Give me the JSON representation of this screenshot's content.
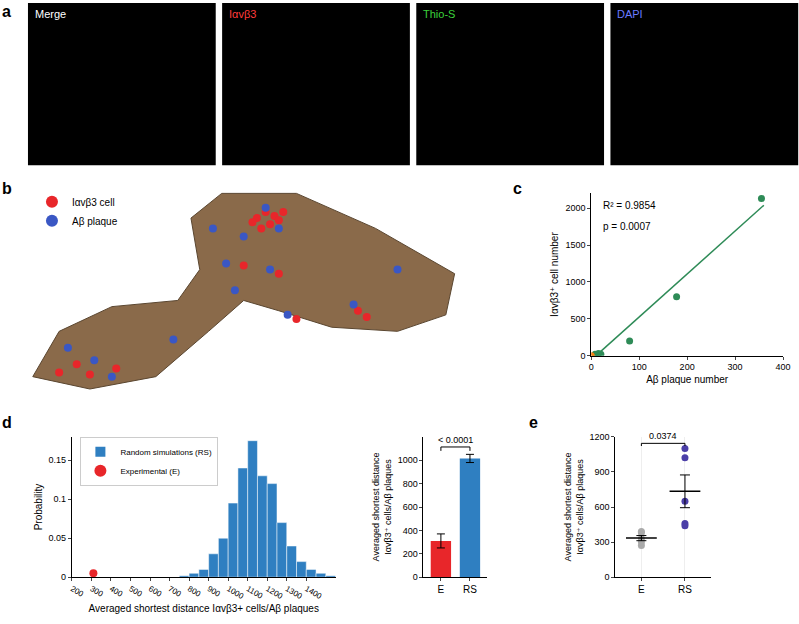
{
  "chart_data": [
    {
      "panel": "a",
      "type": "image_panels",
      "panels": [
        {
          "label": "Merge",
          "color": "#ffffff"
        },
        {
          "label": "Iαvβ3",
          "color": "#ff3b3b"
        },
        {
          "label": "Thio-S",
          "color": "#3bd13b"
        },
        {
          "label": "DAPI",
          "color": "#6a7bff"
        }
      ]
    },
    {
      "panel": "b",
      "type": "scatter",
      "tick_labels": false,
      "legend": "upper left",
      "xlim": [
        0,
        100
      ],
      "ylim": [
        0,
        100
      ],
      "series": [
        {
          "name": "Iαvβ3 cell",
          "color": "#e8262a",
          "x": [
            53,
            55,
            57,
            56,
            58,
            54,
            52,
            59,
            50,
            58,
            12,
            15,
            21,
            8,
            62,
            76,
            78
          ],
          "values": [
            85,
            88,
            86,
            82,
            84,
            80,
            83,
            88,
            62,
            58,
            14,
            9,
            12,
            10,
            36,
            40,
            37
          ]
        },
        {
          "name": "Aβ plaque",
          "color": "#3a57c4",
          "x": [
            55,
            58,
            50,
            46,
            10,
            16,
            20,
            34,
            60,
            75,
            56,
            48,
            43,
            85
          ],
          "values": [
            90,
            80,
            76,
            63,
            22,
            16,
            8,
            26,
            38,
            43,
            60,
            50,
            80,
            60
          ]
        }
      ]
    },
    {
      "panel": "c",
      "type": "scatter",
      "xlabel": "Aβ plaque number",
      "ylabel": "Iαvβ3⁺ cell number",
      "xlim": [
        0,
        400
      ],
      "xticks": [
        0,
        100,
        200,
        300,
        400
      ],
      "ylim": [
        0,
        2200
      ],
      "yticks": [
        0,
        500,
        1000,
        1500,
        2000
      ],
      "annotations": [
        "R² = 0.9854",
        "p = 0.0007"
      ],
      "series": [
        {
          "type": "line",
          "color": "#2e8b57",
          "x": [
            10,
            360
          ],
          "values": [
            0,
            2040
          ]
        },
        {
          "type": "scatter",
          "color": "#2e8b57",
          "x": [
            8,
            15,
            20,
            80,
            178,
            355
          ],
          "values": [
            20,
            30,
            20,
            200,
            800,
            2130
          ]
        },
        {
          "type": "scatter",
          "color": "#ff7f0e",
          "x": [
            0
          ],
          "values": [
            0
          ]
        }
      ]
    },
    {
      "panel": "d",
      "type": "histogram",
      "legend": "upper left",
      "xlabel": "Averaged shortest distance Iαvβ3+ cells/Aβ plaques",
      "ylabel": "Probability",
      "xlim": [
        200,
        1550
      ],
      "xticks": [
        200,
        300,
        400,
        500,
        600,
        700,
        800,
        900,
        1000,
        1100,
        1200,
        1300,
        1400
      ],
      "ylim": [
        0,
        0.18
      ],
      "yticks": [
        0,
        0.05,
        0.1,
        0.15
      ],
      "series": [
        {
          "name": "Random simulations (RS)",
          "type": "bar",
          "color": "#2f7fc1",
          "bins": [
            750,
            800,
            850,
            900,
            950,
            1000,
            1050,
            1100,
            1150,
            1200,
            1250,
            1300,
            1350,
            1400,
            1450,
            1500,
            1550
          ],
          "values": [
            0.002,
            0.005,
            0.01,
            0.03,
            0.05,
            0.095,
            0.14,
            0.175,
            0.13,
            0.12,
            0.07,
            0.04,
            0.02,
            0.01,
            0.005,
            0.002
          ]
        },
        {
          "name": "Experimental (E)",
          "type": "scatter",
          "color": "#e8262a",
          "x": [
            310
          ],
          "values": [
            0.005
          ]
        }
      ]
    },
    {
      "type": "bar",
      "ylabel": [
        "Averaged shortest distance",
        "Iαvβ3⁺ cells/Aβ plaques"
      ],
      "categories": [
        "E",
        "RS"
      ],
      "values": [
        310,
        1015
      ],
      "errors": [
        60,
        35
      ],
      "colors": [
        "#e8262a",
        "#2f7fc1"
      ],
      "ylim": [
        0,
        1200
      ],
      "yticks": [
        0,
        200,
        400,
        600,
        800,
        1000
      ],
      "p_value": "< 0.0001"
    },
    {
      "panel": "e",
      "type": "dot",
      "ylabel": [
        "Averaged shortest distance",
        "Iαvβ3⁺ cells/Aβ plaques"
      ],
      "categories": [
        "E",
        "RS"
      ],
      "points": [
        [
          330,
          270,
          300,
          380,
          390
        ],
        [
          1100,
          1020,
          650,
          460,
          440
        ]
      ],
      "means": [
        334,
        734
      ],
      "errors": [
        22,
        140
      ],
      "colors": [
        "#aaaaaa",
        "#4b3fa8"
      ],
      "ylim": [
        0,
        1200
      ],
      "yticks": [
        0,
        300,
        600,
        900,
        1200
      ],
      "p_value": "0.0374"
    }
  ]
}
